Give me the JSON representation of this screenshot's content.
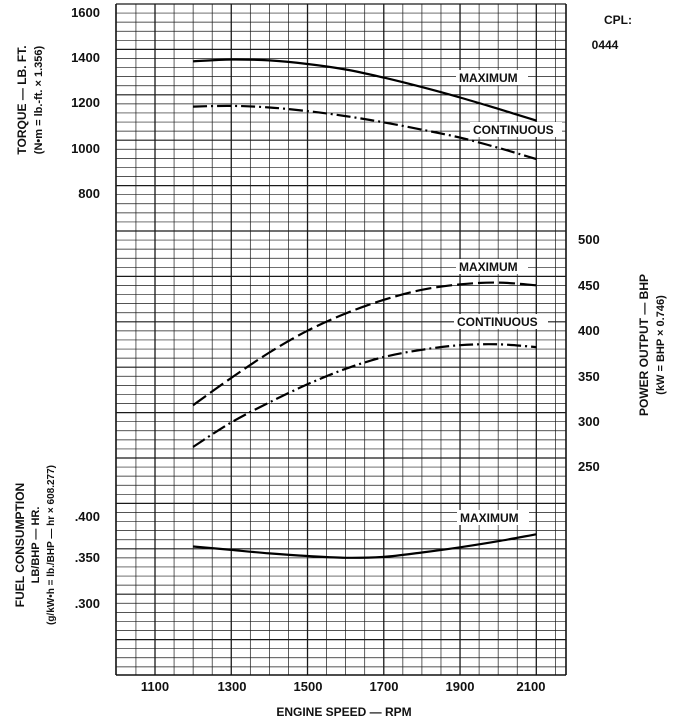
{
  "chart_id": {
    "label": "CPL:",
    "number": "0444"
  },
  "chart_data": [
    {
      "type": "line",
      "panel": "torque",
      "ylabel": "TORQUE — LB. FT.",
      "ylabel2": "(N•m = lb.-ft. × 1.356)",
      "yticks": [
        "1600",
        "1400",
        "1200",
        "1000",
        "800"
      ],
      "ylim": [
        800,
        1600
      ],
      "series": [
        {
          "name": "MAXIMUM",
          "style": "solid",
          "x": [
            1200,
            1300,
            1400,
            1500,
            1600,
            1700,
            1800,
            1900,
            2000,
            2100
          ],
          "y": [
            1382,
            1390,
            1386,
            1370,
            1346,
            1310,
            1268,
            1222,
            1172,
            1120
          ]
        },
        {
          "name": "CONTINUOUS",
          "style": "dash-dot",
          "x": [
            1200,
            1300,
            1400,
            1500,
            1600,
            1700,
            1800,
            1900,
            2000,
            2100
          ],
          "y": [
            1182,
            1185,
            1178,
            1162,
            1140,
            1112,
            1080,
            1045,
            1000,
            950
          ]
        }
      ]
    },
    {
      "type": "line",
      "panel": "power",
      "ylabel": "POWER OUTPUT — BHP",
      "ylabel2": "(kW = BHP × 0.746)",
      "yticks": [
        "500",
        "450",
        "400",
        "350",
        "300",
        "250"
      ],
      "ylim": [
        250,
        500
      ],
      "series": [
        {
          "name": "MAXIMUM",
          "style": "long-dash",
          "x": [
            1200,
            1300,
            1400,
            1500,
            1600,
            1700,
            1800,
            1900,
            2000,
            2100
          ],
          "y": [
            317,
            347,
            375,
            399,
            418,
            433,
            444,
            450,
            452,
            449
          ]
        },
        {
          "name": "CONTINUOUS",
          "style": "dash-dot",
          "x": [
            1200,
            1300,
            1400,
            1500,
            1600,
            1700,
            1800,
            1900,
            2000,
            2100
          ],
          "y": [
            271,
            298,
            320,
            340,
            357,
            370,
            378,
            383,
            384,
            381
          ]
        }
      ]
    },
    {
      "type": "line",
      "panel": "fuel",
      "ylabel": "FUEL CONSUMPTION",
      "ylabel2": "LB/BHP — HR.",
      "ylabel3": "(g/kW•h = lb./BHP — hr × 608.277)",
      "yticks": [
        ".400",
        ".350",
        ".300"
      ],
      "ylim": [
        0.3,
        0.4
      ],
      "series": [
        {
          "name": "MAXIMUM",
          "style": "solid",
          "x": [
            1200,
            1300,
            1400,
            1500,
            1600,
            1700,
            1800,
            1900,
            2000,
            2100
          ],
          "y": [
            0.365,
            0.361,
            0.357,
            0.354,
            0.352,
            0.353,
            0.358,
            0.364,
            0.371,
            0.379
          ]
        }
      ]
    }
  ],
  "x_axis": {
    "label": "ENGINE SPEED — RPM",
    "ticks": [
      "1100",
      "1300",
      "1500",
      "1700",
      "1900",
      "2100"
    ],
    "values": [
      1100,
      1300,
      1500,
      1700,
      1900,
      2100
    ]
  }
}
